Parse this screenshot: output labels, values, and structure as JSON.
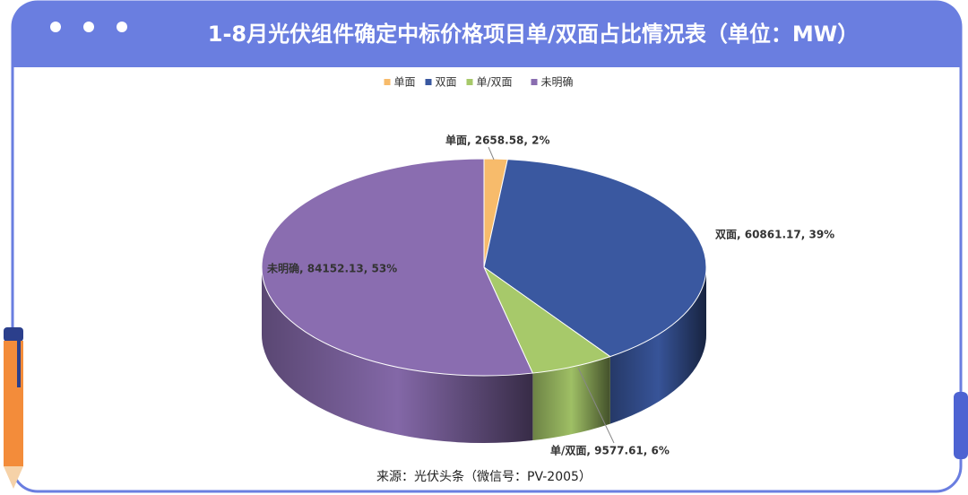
{
  "chart_data": {
    "type": "pie3d",
    "title": "1-8月光伏组件确定中标价格项目单/双面占比情况表（单位：MW）",
    "categories": [
      "单面",
      "双面",
      "单/双面",
      "未明确"
    ],
    "values": [
      2658.58,
      60861.17,
      9577.61,
      84152.13
    ],
    "value_labels": [
      "单面, 2658.58, 2%",
      "双面, 60861.17, 39%",
      "单/双面, 9577.61, 6%",
      "未明确, 84152.13, 53%"
    ],
    "colors": [
      "#f7bb6b",
      "#3a58a0",
      "#a7c96a",
      "#8a6db0"
    ],
    "legend": "top",
    "source": "来源：光伏头条（微信号：PV-2005）"
  }
}
